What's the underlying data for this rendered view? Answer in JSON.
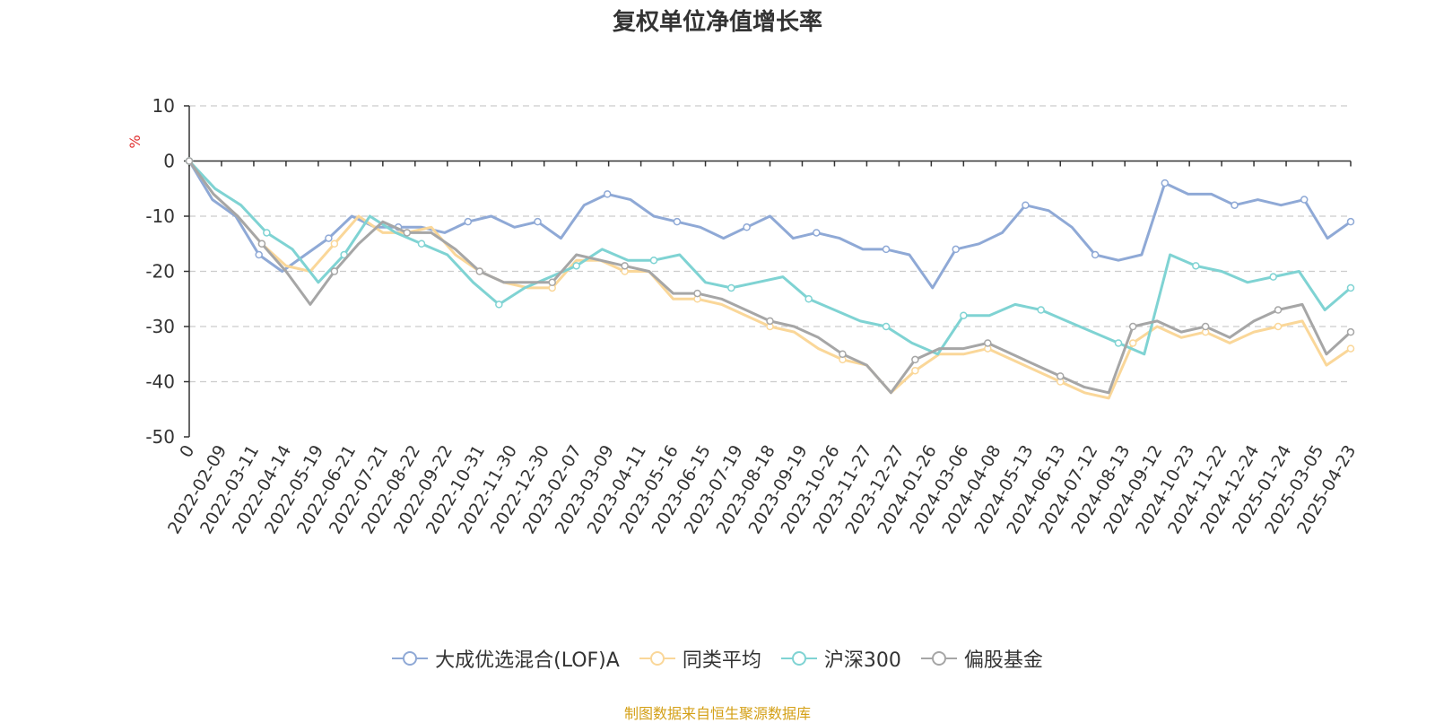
{
  "chart_data": {
    "type": "line",
    "title": "复权单位净值增长率",
    "ylabel": "%",
    "ylim": [
      -50,
      10
    ],
    "yticks": [
      10,
      0,
      -10,
      -20,
      -30,
      -40,
      -50
    ],
    "xlabels": [
      "0",
      "2022-02-09",
      "2022-03-11",
      "2022-04-14",
      "2022-05-19",
      "2022-06-21",
      "2022-07-21",
      "2022-08-22",
      "2022-09-22",
      "2022-10-31",
      "2022-11-30",
      "2022-12-30",
      "2023-02-07",
      "2023-03-09",
      "2023-04-11",
      "2023-05-16",
      "2023-06-15",
      "2023-07-19",
      "2023-08-18",
      "2023-09-19",
      "2023-10-26",
      "2023-11-27",
      "2023-12-27",
      "2024-01-26",
      "2024-03-06",
      "2024-04-08",
      "2024-05-13",
      "2024-06-13",
      "2024-07-12",
      "2024-08-13",
      "2024-09-12",
      "2024-10-23",
      "2024-11-22",
      "2024-12-24",
      "2025-01-24",
      "2025-03-05",
      "2025-04-23"
    ],
    "grid": true,
    "legend_position": "bottom",
    "series": [
      {
        "name": "大成优选混合(LOF)A",
        "color": "#8fa9d6",
        "values": [
          0,
          -7,
          -10,
          -17,
          -20,
          -17,
          -14,
          -10,
          -12,
          -12,
          -12,
          -13,
          -11,
          -10,
          -12,
          -11,
          -14,
          -8,
          -6,
          -7,
          -10,
          -11,
          -12,
          -14,
          -12,
          -10,
          -14,
          -13,
          -14,
          -16,
          -16,
          -17,
          -23,
          -16,
          -15,
          -13,
          -8,
          -9,
          -12,
          -17,
          -18,
          -17,
          -4,
          -6,
          -6,
          -8,
          -7,
          -8,
          -7,
          -14,
          -11
        ]
      },
      {
        "name": "同类平均",
        "color": "#fad799",
        "values": [
          0,
          -6,
          -10,
          -15,
          -19,
          -20,
          -15,
          -10,
          -13,
          -13,
          -12,
          -17,
          -20,
          -22,
          -23,
          -23,
          -18,
          -18,
          -20,
          -20,
          -25,
          -25,
          -26,
          -28,
          -30,
          -31,
          -34,
          -36,
          -37,
          -42,
          -38,
          -35,
          -35,
          -34,
          -36,
          -38,
          -40,
          -42,
          -43,
          -33,
          -30,
          -32,
          -31,
          -33,
          -31,
          -30,
          -29,
          -37,
          -34
        ]
      },
      {
        "name": "沪深300",
        "color": "#7fd3d3",
        "values": [
          0,
          -5,
          -8,
          -13,
          -16,
          -22,
          -17,
          -10,
          -13,
          -15,
          -17,
          -22,
          -26,
          -23,
          -21,
          -19,
          -16,
          -18,
          -18,
          -17,
          -22,
          -23,
          -22,
          -21,
          -25,
          -27,
          -29,
          -30,
          -33,
          -35,
          -28,
          -28,
          -26,
          -27,
          -29,
          -31,
          -33,
          -35,
          -17,
          -19,
          -20,
          -22,
          -21,
          -20,
          -27,
          -23
        ]
      },
      {
        "name": "偏股基金",
        "color": "#a6a6a6",
        "values": [
          0,
          -6,
          -10,
          -15,
          -20,
          -26,
          -20,
          -15,
          -11,
          -13,
          -13,
          -16,
          -20,
          -22,
          -22,
          -22,
          -17,
          -18,
          -19,
          -20,
          -24,
          -24,
          -25,
          -27,
          -29,
          -30,
          -32,
          -35,
          -37,
          -42,
          -36,
          -34,
          -34,
          -33,
          -35,
          -37,
          -39,
          -41,
          -42,
          -30,
          -29,
          -31,
          -30,
          -32,
          -29,
          -27,
          -26,
          -35,
          -31
        ]
      }
    ]
  },
  "source": {
    "text": "制图数据来自恒生聚源数据库",
    "color": "#d4a017"
  }
}
